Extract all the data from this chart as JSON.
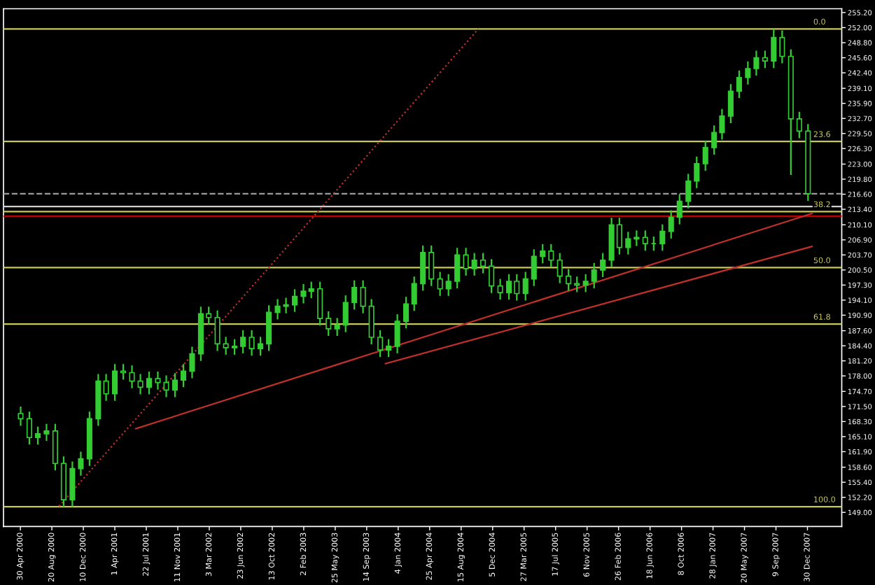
{
  "chart_data": {
    "type": "candlestick",
    "color": "#33cc33",
    "x": [
      "2000-05",
      "2000-06",
      "2000-07",
      "2000-08",
      "2000-09",
      "2000-10",
      "2000-11",
      "2000-12",
      "2001-01",
      "2001-02",
      "2001-03",
      "2001-04",
      "2001-05",
      "2001-06",
      "2001-07",
      "2001-08",
      "2001-09",
      "2001-10",
      "2001-11",
      "2001-12",
      "2002-01",
      "2002-02",
      "2002-03",
      "2002-04",
      "2002-05",
      "2002-06",
      "2002-07",
      "2002-08",
      "2002-09",
      "2002-10",
      "2002-11",
      "2002-12",
      "2003-01",
      "2003-02",
      "2003-03",
      "2003-04",
      "2003-05",
      "2003-06",
      "2003-07",
      "2003-08",
      "2003-09",
      "2003-10",
      "2003-11",
      "2003-12",
      "2004-01",
      "2004-02",
      "2004-03",
      "2004-04",
      "2004-05",
      "2004-06",
      "2004-07",
      "2004-08",
      "2004-09",
      "2004-10",
      "2004-11",
      "2004-12",
      "2005-01",
      "2005-02",
      "2005-03",
      "2005-04",
      "2005-05",
      "2005-06",
      "2005-07",
      "2005-08",
      "2005-09",
      "2005-10",
      "2005-11",
      "2005-12",
      "2006-01",
      "2006-02",
      "2006-03",
      "2006-04",
      "2006-05",
      "2006-06",
      "2006-07",
      "2006-08",
      "2006-09",
      "2006-10",
      "2006-11",
      "2006-12",
      "2007-01",
      "2007-02",
      "2007-03",
      "2007-04",
      "2007-05",
      "2007-06",
      "2007-07",
      "2007-08",
      "2007-09",
      "2007-10",
      "2007-11",
      "2007-12",
      "2008-01"
    ],
    "ohlc": [
      [
        170.0,
        171.5,
        167.4,
        168.9
      ],
      [
        168.9,
        170.4,
        163.4,
        164.9
      ],
      [
        164.9,
        167.2,
        163.4,
        165.7
      ],
      [
        165.7,
        167.8,
        164.2,
        166.3
      ],
      [
        166.3,
        167.8,
        157.9,
        159.4
      ],
      [
        159.4,
        160.9,
        150.2,
        151.7
      ],
      [
        151.7,
        159.8,
        150.2,
        158.3
      ],
      [
        158.3,
        161.9,
        156.8,
        160.4
      ],
      [
        160.4,
        170.4,
        158.9,
        168.9
      ],
      [
        168.9,
        178.4,
        167.4,
        176.9
      ],
      [
        176.9,
        178.4,
        172.7,
        174.2
      ],
      [
        174.2,
        180.5,
        172.7,
        179.0
      ],
      [
        179.0,
        180.5,
        177.2,
        178.7
      ],
      [
        178.7,
        180.2,
        175.4,
        176.9
      ],
      [
        176.9,
        178.4,
        174.1,
        175.6
      ],
      [
        175.6,
        178.9,
        174.1,
        177.4
      ],
      [
        177.4,
        178.9,
        175.1,
        176.6
      ],
      [
        176.6,
        178.1,
        173.5,
        175.0
      ],
      [
        175.0,
        178.6,
        173.5,
        177.1
      ],
      [
        177.1,
        180.5,
        175.6,
        179.0
      ],
      [
        179.0,
        184.2,
        177.5,
        182.7
      ],
      [
        182.7,
        192.7,
        181.2,
        191.2
      ],
      [
        191.2,
        192.7,
        188.9,
        190.4
      ],
      [
        190.4,
        191.9,
        183.3,
        184.8
      ],
      [
        184.8,
        186.3,
        182.5,
        184.0
      ],
      [
        184.0,
        185.8,
        182.5,
        184.3
      ],
      [
        184.3,
        187.7,
        182.8,
        186.2
      ],
      [
        186.2,
        187.7,
        182.3,
        183.8
      ],
      [
        183.8,
        186.3,
        182.3,
        184.8
      ],
      [
        184.8,
        193.0,
        183.3,
        191.5
      ],
      [
        191.5,
        194.3,
        190.0,
        192.8
      ],
      [
        192.8,
        194.6,
        191.3,
        193.1
      ],
      [
        193.1,
        196.4,
        191.6,
        194.9
      ],
      [
        194.9,
        197.5,
        193.4,
        196.0
      ],
      [
        196.0,
        198.0,
        194.5,
        196.5
      ],
      [
        196.5,
        198.0,
        188.7,
        190.2
      ],
      [
        190.2,
        191.7,
        186.5,
        188.0
      ],
      [
        188.0,
        190.3,
        186.5,
        188.8
      ],
      [
        188.8,
        195.1,
        187.3,
        193.6
      ],
      [
        193.6,
        198.3,
        192.1,
        196.8
      ],
      [
        196.8,
        198.3,
        191.3,
        192.8
      ],
      [
        192.8,
        194.3,
        184.7,
        186.2
      ],
      [
        186.2,
        187.7,
        182.0,
        183.5
      ],
      [
        183.5,
        185.8,
        182.0,
        184.3
      ],
      [
        184.3,
        191.1,
        182.8,
        189.6
      ],
      [
        189.6,
        194.8,
        188.1,
        193.3
      ],
      [
        193.3,
        199.1,
        191.8,
        197.6
      ],
      [
        197.6,
        205.7,
        196.1,
        204.2
      ],
      [
        204.2,
        205.7,
        197.1,
        198.6
      ],
      [
        198.6,
        200.1,
        195.0,
        196.5
      ],
      [
        196.5,
        199.6,
        195.0,
        198.1
      ],
      [
        198.1,
        205.2,
        196.6,
        203.7
      ],
      [
        203.7,
        205.2,
        199.3,
        200.8
      ],
      [
        200.8,
        204.1,
        199.3,
        202.6
      ],
      [
        202.6,
        204.1,
        199.8,
        201.3
      ],
      [
        201.3,
        202.8,
        195.6,
        197.1
      ],
      [
        197.1,
        198.6,
        194.2,
        195.7
      ],
      [
        195.7,
        199.6,
        194.2,
        198.1
      ],
      [
        198.1,
        199.6,
        194.0,
        195.5
      ],
      [
        195.5,
        200.1,
        194.0,
        198.6
      ],
      [
        198.6,
        204.9,
        197.1,
        203.4
      ],
      [
        203.4,
        206.0,
        201.9,
        204.5
      ],
      [
        204.5,
        206.0,
        201.1,
        202.6
      ],
      [
        202.6,
        204.1,
        197.7,
        199.2
      ],
      [
        199.2,
        200.7,
        196.1,
        197.6
      ],
      [
        197.6,
        199.1,
        195.8,
        197.3
      ],
      [
        197.3,
        199.6,
        195.8,
        198.1
      ],
      [
        198.1,
        202.0,
        196.6,
        200.5
      ],
      [
        200.5,
        204.1,
        199.0,
        202.6
      ],
      [
        202.6,
        211.6,
        201.1,
        210.1
      ],
      [
        210.1,
        211.6,
        203.8,
        205.3
      ],
      [
        205.3,
        208.6,
        203.8,
        207.1
      ],
      [
        207.1,
        208.9,
        205.6,
        207.4
      ],
      [
        207.4,
        208.9,
        204.6,
        206.1
      ],
      [
        206.1,
        207.6,
        204.6,
        206.1
      ],
      [
        206.1,
        210.2,
        204.6,
        208.7
      ],
      [
        208.7,
        213.2,
        207.2,
        211.7
      ],
      [
        211.7,
        216.6,
        210.2,
        215.1
      ],
      [
        215.1,
        220.9,
        213.6,
        219.4
      ],
      [
        219.4,
        224.6,
        217.9,
        223.1
      ],
      [
        223.1,
        228.0,
        221.6,
        226.5
      ],
      [
        226.5,
        231.2,
        225.0,
        229.7
      ],
      [
        229.7,
        234.7,
        228.2,
        233.2
      ],
      [
        233.2,
        240.0,
        231.7,
        238.5
      ],
      [
        238.5,
        242.9,
        237.0,
        241.4
      ],
      [
        241.4,
        244.8,
        239.9,
        243.3
      ],
      [
        243.3,
        247.1,
        241.8,
        245.6
      ],
      [
        245.6,
        247.1,
        243.4,
        244.9
      ],
      [
        244.9,
        251.7,
        243.4,
        249.9
      ],
      [
        249.9,
        251.4,
        244.4,
        245.9
      ],
      [
        245.9,
        247.4,
        220.7,
        232.6
      ],
      [
        232.6,
        234.1,
        228.5,
        230.0
      ],
      [
        230.0,
        231.5,
        215.2,
        216.7
      ]
    ],
    "series": [
      {
        "type": "line",
        "color": "#c0302a",
        "line_style": "solid",
        "x": [
          "2001-06-15",
          "2008-01-15"
        ],
        "values": [
          166.8,
          212.5
        ]
      },
      {
        "type": "line",
        "color": "#c0302a",
        "line_style": "solid",
        "x": [
          "2003-11-20",
          "2008-01-15"
        ],
        "values": [
          180.6,
          205.5
        ]
      },
      {
        "type": "line",
        "color": "#c0302a",
        "line_style": "dotted",
        "x": [
          "2000-09-15",
          "2004-10-15"
        ],
        "values": [
          150.3,
          251.7
        ]
      }
    ],
    "ref_lines": [
      {
        "axis": "y",
        "value": 251.7,
        "color": "#c8c85a",
        "line_style": "solid"
      },
      {
        "axis": "y",
        "value": 227.8,
        "color": "#c8c85a",
        "line_style": "solid"
      },
      {
        "axis": "y",
        "value": 212.9,
        "color": "#c8c85a",
        "line_style": "solid"
      },
      {
        "axis": "y",
        "value": 201.0,
        "color": "#c8c85a",
        "line_style": "solid"
      },
      {
        "axis": "y",
        "value": 189.0,
        "color": "#c8c85a",
        "line_style": "solid"
      },
      {
        "axis": "y",
        "value": 150.2,
        "color": "#c8c85a",
        "line_style": "solid"
      },
      {
        "axis": "y",
        "value": 216.7,
        "color": "#9a9a9a",
        "line_style": "dashed"
      },
      {
        "axis": "y",
        "value": 214.0,
        "color": "#d0d0d0",
        "line_style": "solid"
      },
      {
        "axis": "y",
        "value": 211.9,
        "color": "#c00000",
        "line_style": "solid"
      }
    ],
    "annotations": [
      {
        "text": "0.0",
        "x": "2008-01-20",
        "y": 251.7
      },
      {
        "text": "23.6",
        "x": "2008-01-20",
        "y": 227.8
      },
      {
        "text": "38.2",
        "x": "2008-01-20",
        "y": 212.9
      },
      {
        "text": "50.0",
        "x": "2008-01-20",
        "y": 201.0
      },
      {
        "text": "61.8",
        "x": "2008-01-20",
        "y": 189.0
      },
      {
        "text": "100.0",
        "x": "2008-01-20",
        "y": 150.2
      }
    ],
    "xlim": [
      "2000-03-01",
      "2008-04-30"
    ],
    "xticks": [
      {
        "value": "2000-04-30",
        "label": "30 Apr 2000"
      },
      {
        "value": "2000-08-20",
        "label": "20 Aug 2000"
      },
      {
        "value": "2000-12-10",
        "label": "10 Dec 2000"
      },
      {
        "value": "2001-04-01",
        "label": "1 Apr 2001"
      },
      {
        "value": "2001-07-22",
        "label": "22 Jul 2001"
      },
      {
        "value": "2001-11-11",
        "label": "11 Nov 2001"
      },
      {
        "value": "2002-03-03",
        "label": "3 Mar 2002"
      },
      {
        "value": "2002-06-23",
        "label": "23 Jun 2002"
      },
      {
        "value": "2002-10-13",
        "label": "13 Oct 2002"
      },
      {
        "value": "2003-02-02",
        "label": "2 Feb 2003"
      },
      {
        "value": "2003-05-25",
        "label": "25 May 2003"
      },
      {
        "value": "2003-09-14",
        "label": "14 Sep 2003"
      },
      {
        "value": "2004-01-04",
        "label": "4 Jan 2004"
      },
      {
        "value": "2004-04-25",
        "label": "25 Apr 2004"
      },
      {
        "value": "2004-08-15",
        "label": "15 Aug 2004"
      },
      {
        "value": "2004-12-05",
        "label": "5 Dec 2004"
      },
      {
        "value": "2005-03-27",
        "label": "27 Mar 2005"
      },
      {
        "value": "2005-07-17",
        "label": "17 Jul 2005"
      },
      {
        "value": "2005-11-06",
        "label": "6 Nov 2005"
      },
      {
        "value": "2006-02-26",
        "label": "26 Feb 2006"
      },
      {
        "value": "2006-06-18",
        "label": "18 Jun 2006"
      },
      {
        "value": "2006-10-08",
        "label": "8 Oct 2006"
      },
      {
        "value": "2007-01-28",
        "label": "28 Jan 2007"
      },
      {
        "value": "2007-05-20",
        "label": "20 May 2007"
      },
      {
        "value": "2007-09-09",
        "label": "9 Sep 2007"
      },
      {
        "value": "2007-12-30",
        "label": "30 Dec 2007"
      }
    ],
    "ylim": [
      146.0,
      256.0
    ],
    "yticks": [
      {
        "value": 149.0,
        "label": "149.00"
      },
      {
        "value": 152.2,
        "label": "152.20"
      },
      {
        "value": 155.4,
        "label": "155.40"
      },
      {
        "value": 158.6,
        "label": "158.60"
      },
      {
        "value": 161.9,
        "label": "161.90"
      },
      {
        "value": 165.1,
        "label": "165.10"
      },
      {
        "value": 168.3,
        "label": "168.30"
      },
      {
        "value": 171.5,
        "label": "171.50"
      },
      {
        "value": 174.7,
        "label": "174.70"
      },
      {
        "value": 178.0,
        "label": "178.00"
      },
      {
        "value": 181.2,
        "label": "181.20"
      },
      {
        "value": 184.4,
        "label": "184.40"
      },
      {
        "value": 187.6,
        "label": "187.60"
      },
      {
        "value": 190.9,
        "label": "190.90"
      },
      {
        "value": 194.1,
        "label": "194.10"
      },
      {
        "value": 197.3,
        "label": "197.30"
      },
      {
        "value": 200.5,
        "label": "200.50"
      },
      {
        "value": 203.7,
        "label": "203.70"
      },
      {
        "value": 206.9,
        "label": "206.90"
      },
      {
        "value": 210.1,
        "label": "210.10"
      },
      {
        "value": 213.4,
        "label": "213.40"
      },
      {
        "value": 216.6,
        "label": "216.60"
      },
      {
        "value": 219.8,
        "label": "219.80"
      },
      {
        "value": 223.0,
        "label": "223.00"
      },
      {
        "value": 226.3,
        "label": "226.30"
      },
      {
        "value": 229.5,
        "label": "229.50"
      },
      {
        "value": 232.7,
        "label": "232.70"
      },
      {
        "value": 235.9,
        "label": "235.90"
      },
      {
        "value": 239.1,
        "label": "239.10"
      },
      {
        "value": 242.4,
        "label": "242.40"
      },
      {
        "value": 245.6,
        "label": "245.60"
      },
      {
        "value": 248.8,
        "label": "248.80"
      },
      {
        "value": 252.0,
        "label": "252.00"
      },
      {
        "value": 255.2,
        "label": "255.20"
      }
    ]
  }
}
